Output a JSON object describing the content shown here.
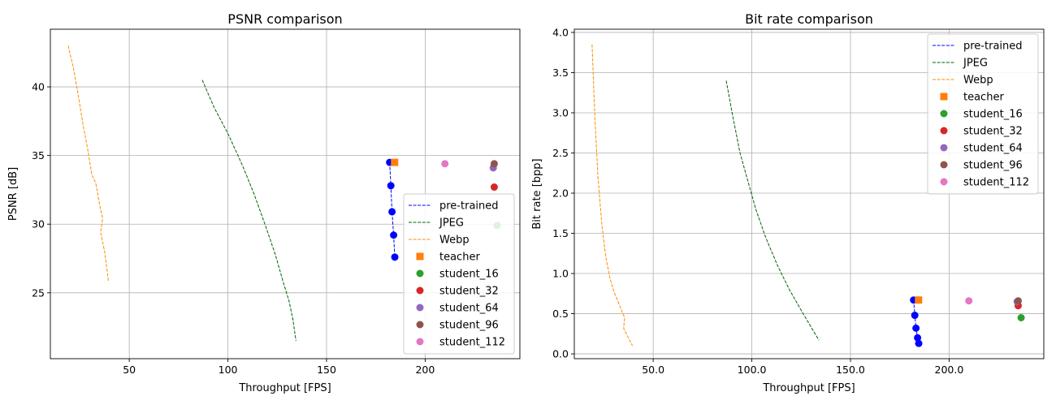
{
  "chart_data": [
    {
      "type": "line",
      "title": "PSNR comparison",
      "xlabel": "Throughput [FPS]",
      "ylabel": "PSNR [dB]",
      "xlim": [
        10,
        248
      ],
      "ylim": [
        20.2,
        44.2
      ],
      "xticks": [
        50,
        100,
        150,
        200
      ],
      "yticks": [
        25,
        30,
        35,
        40
      ],
      "grid": true,
      "legend_position": "lower right",
      "series": [
        {
          "name": "pre-trained",
          "style": "dashed-marker",
          "color": "#0000ff",
          "x": [
            182,
            182.6,
            183.2,
            184.0,
            184.6
          ],
          "y": [
            34.5,
            32.8,
            30.9,
            29.2,
            27.6
          ]
        },
        {
          "name": "JPEG",
          "style": "dashed",
          "color": "#006400",
          "x": [
            87,
            93,
            100,
            107,
            113,
            119,
            124,
            128,
            131,
            133,
            134.5
          ],
          "y": [
            40.5,
            38.5,
            36.6,
            34.4,
            32.3,
            29.9,
            27.8,
            25.8,
            24.4,
            23.0,
            21.5
          ]
        },
        {
          "name": "Webp",
          "style": "dashed",
          "color": "#ff8c00",
          "x": [
            19,
            21.5,
            24,
            26.5,
            29,
            31,
            33,
            35,
            36.5,
            35.5,
            37.5,
            39.5
          ],
          "y": [
            43.0,
            41.5,
            39.5,
            37.3,
            35.4,
            33.6,
            33.0,
            31.4,
            30.4,
            29.4,
            28.0,
            25.8
          ]
        },
        {
          "name": "teacher",
          "style": "square",
          "color": "#ff7f0e",
          "x": [
            184.5
          ],
          "y": [
            34.5
          ]
        },
        {
          "name": "student_16",
          "style": "circle",
          "color": "#2ca02c",
          "x": [
            236.5
          ],
          "y": [
            29.9
          ]
        },
        {
          "name": "student_32",
          "style": "circle",
          "color": "#d62728",
          "x": [
            235.0
          ],
          "y": [
            32.7
          ]
        },
        {
          "name": "student_64",
          "style": "circle",
          "color": "#9467bd",
          "x": [
            234.5
          ],
          "y": [
            34.1
          ]
        },
        {
          "name": "student_96",
          "style": "circle",
          "color": "#8c564b",
          "x": [
            235.0
          ],
          "y": [
            34.4
          ]
        },
        {
          "name": "student_112",
          "style": "circle",
          "color": "#e377c2",
          "x": [
            210.0
          ],
          "y": [
            34.4
          ]
        }
      ]
    },
    {
      "type": "line",
      "title": "Bit rate comparison",
      "xlabel": "Throughput [FPS]",
      "ylabel": "Bit rate [bpp]",
      "xlim": [
        10,
        248
      ],
      "ylim": [
        -0.06,
        4.04
      ],
      "xticks": [
        50,
        100,
        150,
        200
      ],
      "yticks": [
        0.0,
        0.5,
        1.0,
        1.5,
        2.0,
        2.5,
        3.0,
        3.5,
        4.0
      ],
      "tick_format": "1dp",
      "grid": true,
      "legend_position": "upper right",
      "series": [
        {
          "name": "pre-trained",
          "style": "dashed-marker",
          "color": "#0000ff",
          "x": [
            182,
            182.6,
            183.2,
            184.0,
            184.6
          ],
          "y": [
            0.67,
            0.48,
            0.32,
            0.2,
            0.13
          ]
        },
        {
          "name": "JPEG",
          "style": "dashed",
          "color": "#006400",
          "x": [
            87,
            90,
            94,
            98,
            102,
            107,
            113,
            119,
            126,
            134
          ],
          "y": [
            3.4,
            3.0,
            2.5,
            2.15,
            1.8,
            1.45,
            1.1,
            0.8,
            0.5,
            0.17
          ]
        },
        {
          "name": "Webp",
          "style": "dashed",
          "color": "#ff8c00",
          "x": [
            19,
            20.5,
            22,
            24,
            26,
            28,
            30,
            33,
            35.5,
            35,
            37,
            39.5
          ],
          "y": [
            3.85,
            2.9,
            2.2,
            1.6,
            1.2,
            0.95,
            0.78,
            0.6,
            0.45,
            0.32,
            0.22,
            0.1
          ]
        },
        {
          "name": "teacher",
          "style": "square",
          "color": "#ff7f0e",
          "x": [
            184.5
          ],
          "y": [
            0.67
          ]
        },
        {
          "name": "student_16",
          "style": "circle",
          "color": "#2ca02c",
          "x": [
            236.5
          ],
          "y": [
            0.45
          ]
        },
        {
          "name": "student_32",
          "style": "circle",
          "color": "#d62728",
          "x": [
            235.0
          ],
          "y": [
            0.6
          ]
        },
        {
          "name": "student_64",
          "style": "circle",
          "color": "#9467bd",
          "x": [
            234.5
          ],
          "y": [
            0.65
          ]
        },
        {
          "name": "student_96",
          "style": "circle",
          "color": "#8c564b",
          "x": [
            235.0
          ],
          "y": [
            0.66
          ]
        },
        {
          "name": "student_112",
          "style": "circle",
          "color": "#e377c2",
          "x": [
            210.0
          ],
          "y": [
            0.66
          ]
        }
      ]
    }
  ]
}
